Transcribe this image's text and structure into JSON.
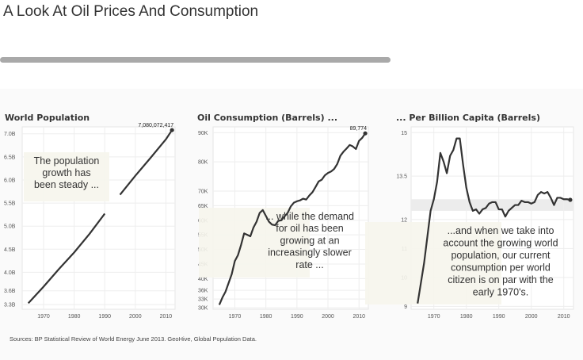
{
  "page": {
    "title": "A Look At Oil Prices And Consumption",
    "progress_fraction": 0.67,
    "source": "Sources: BP Statistical Review of World Energy June 2013. GeoHive, Global Population Data."
  },
  "chart_data": [
    {
      "type": "line",
      "title": "World Population",
      "x": [
        1965,
        1970,
        1975,
        1980,
        1985,
        1990,
        1995,
        2000,
        2005,
        2010,
        2012
      ],
      "series": [
        {
          "values": [
            3.33,
            3.69,
            4.07,
            4.43,
            4.83,
            5.27,
            5.68,
            6.09,
            6.48,
            6.88,
            7.08
          ]
        }
      ],
      "xlim": [
        1963,
        2013
      ],
      "ylim": [
        3.2,
        7.15
      ],
      "xticks": [
        {
          "v": 1970,
          "label": "1970"
        },
        {
          "v": 1980,
          "label": "1980"
        },
        {
          "v": 1990,
          "label": "1990"
        },
        {
          "v": 2000,
          "label": "2000"
        },
        {
          "v": 2010,
          "label": "2010"
        }
      ],
      "yticks": [
        {
          "v": 3.3,
          "label": "3.3B"
        },
        {
          "v": 3.6,
          "label": "3.6B"
        },
        {
          "v": 4.0,
          "label": "4.0B"
        },
        {
          "v": 4.5,
          "label": "4.5B"
        },
        {
          "v": 5.0,
          "label": "5.0B"
        },
        {
          "v": 5.5,
          "label": "5.5B"
        },
        {
          "v": 6.0,
          "label": "6.0B"
        },
        {
          "v": 6.5,
          "label": "6.5B"
        },
        {
          "v": 7.0,
          "label": "7.0B"
        }
      ],
      "end_label": "7,080,072,417",
      "annotation": [
        "The population",
        "growth has",
        "been steady ..."
      ]
    },
    {
      "type": "line",
      "title": "Oil Consumption (Barrels) ...",
      "x": [
        1965,
        1966,
        1967,
        1968,
        1969,
        1970,
        1971,
        1972,
        1973,
        1974,
        1975,
        1976,
        1977,
        1978,
        1979,
        1980,
        1981,
        1982,
        1983,
        1984,
        1985,
        1986,
        1987,
        1988,
        1989,
        1990,
        1991,
        1992,
        1993,
        1994,
        1995,
        1996,
        1997,
        1998,
        1999,
        2000,
        2001,
        2002,
        2003,
        2004,
        2005,
        2006,
        2007,
        2008,
        2009,
        2010,
        2011,
        2012
      ],
      "series": [
        {
          "values": [
            31,
            33.5,
            35.5,
            38.5,
            41.5,
            46,
            48,
            51.5,
            55.5,
            55,
            54.5,
            57.5,
            59.5,
            62.5,
            63.5,
            61.5,
            59.5,
            58.5,
            58.3,
            59.8,
            60,
            61.3,
            62.5,
            64.7,
            66,
            66.5,
            66.8,
            67.4,
            67.1,
            68.5,
            69.6,
            71.4,
            73.3,
            73.9,
            75.4,
            76.2,
            76.7,
            77.6,
            79.3,
            82.1,
            83.5,
            84.6,
            85.8,
            85.3,
            84.4,
            87.2,
            88.2,
            89.774
          ]
        }
      ],
      "xlim": [
        1963,
        2013
      ],
      "ylim": [
        29.5,
        92
      ],
      "xticks": [
        {
          "v": 1970,
          "label": "1970"
        },
        {
          "v": 1980,
          "label": "1980"
        },
        {
          "v": 1990,
          "label": "1990"
        },
        {
          "v": 2000,
          "label": "2000"
        },
        {
          "v": 2010,
          "label": "2010"
        }
      ],
      "yticks": [
        {
          "v": 30,
          "label": "30K"
        },
        {
          "v": 33,
          "label": "33K"
        },
        {
          "v": 36,
          "label": "36K"
        },
        {
          "v": 40,
          "label": "40K"
        },
        {
          "v": 45,
          "label": "45K"
        },
        {
          "v": 50,
          "label": "50K"
        },
        {
          "v": 55,
          "label": "55K"
        },
        {
          "v": 60,
          "label": "60K"
        },
        {
          "v": 65,
          "label": "65K"
        },
        {
          "v": 70,
          "label": "70K"
        },
        {
          "v": 80,
          "label": "80K"
        },
        {
          "v": 90,
          "label": "90K"
        }
      ],
      "end_label": "89,774",
      "annotation": [
        "... while the demand",
        "for oil has been",
        "growing at an",
        "increasingly slower",
        "rate ..."
      ]
    },
    {
      "type": "line",
      "title": "... Per Billion Capita (Barrels)",
      "x": [
        1965,
        1966,
        1967,
        1968,
        1969,
        1970,
        1971,
        1972,
        1973,
        1974,
        1975,
        1976,
        1977,
        1978,
        1979,
        1980,
        1981,
        1982,
        1983,
        1984,
        1985,
        1986,
        1987,
        1988,
        1989,
        1990,
        1991,
        1992,
        1993,
        1994,
        1995,
        1996,
        1997,
        1998,
        1999,
        2000,
        2001,
        2002,
        2003,
        2004,
        2005,
        2006,
        2007,
        2008,
        2009,
        2010,
        2011,
        2012
      ],
      "series": [
        {
          "values": [
            9.1,
            9.8,
            10.5,
            11.4,
            12.3,
            12.7,
            13.3,
            14.3,
            14.0,
            13.6,
            14.2,
            14.4,
            14.8,
            14.8,
            13.9,
            13.1,
            12.6,
            12.3,
            12.35,
            12.2,
            12.35,
            12.4,
            12.55,
            12.6,
            12.6,
            12.35,
            12.35,
            12.1,
            12.3,
            12.4,
            12.5,
            12.5,
            12.65,
            12.6,
            12.6,
            12.55,
            12.6,
            12.85,
            12.95,
            12.9,
            12.95,
            12.75,
            12.5,
            12.75,
            12.75,
            12.7,
            12.7,
            12.68
          ]
        }
      ],
      "xlim": [
        1963,
        2013
      ],
      "ylim": [
        8.9,
        15.2
      ],
      "xticks": [
        {
          "v": 1970,
          "label": "1970"
        },
        {
          "v": 1980,
          "label": "1980"
        },
        {
          "v": 1990,
          "label": "1990"
        },
        {
          "v": 2000,
          "label": "2000"
        },
        {
          "v": 2010,
          "label": "2010"
        }
      ],
      "yticks": [
        {
          "v": 9,
          "label": "9"
        },
        {
          "v": 10,
          "label": "10"
        },
        {
          "v": 11,
          "label": "11"
        },
        {
          "v": 12,
          "label": "12"
        },
        {
          "v": 13.5,
          "label": "13.5"
        },
        {
          "v": 15,
          "label": "15"
        }
      ],
      "band": [
        12.3,
        12.7
      ],
      "annotation": [
        "...and when we take into",
        "account the growing world",
        "population, our current",
        "consumption per world",
        "citizen is on par with the",
        "early 1970's."
      ]
    }
  ]
}
